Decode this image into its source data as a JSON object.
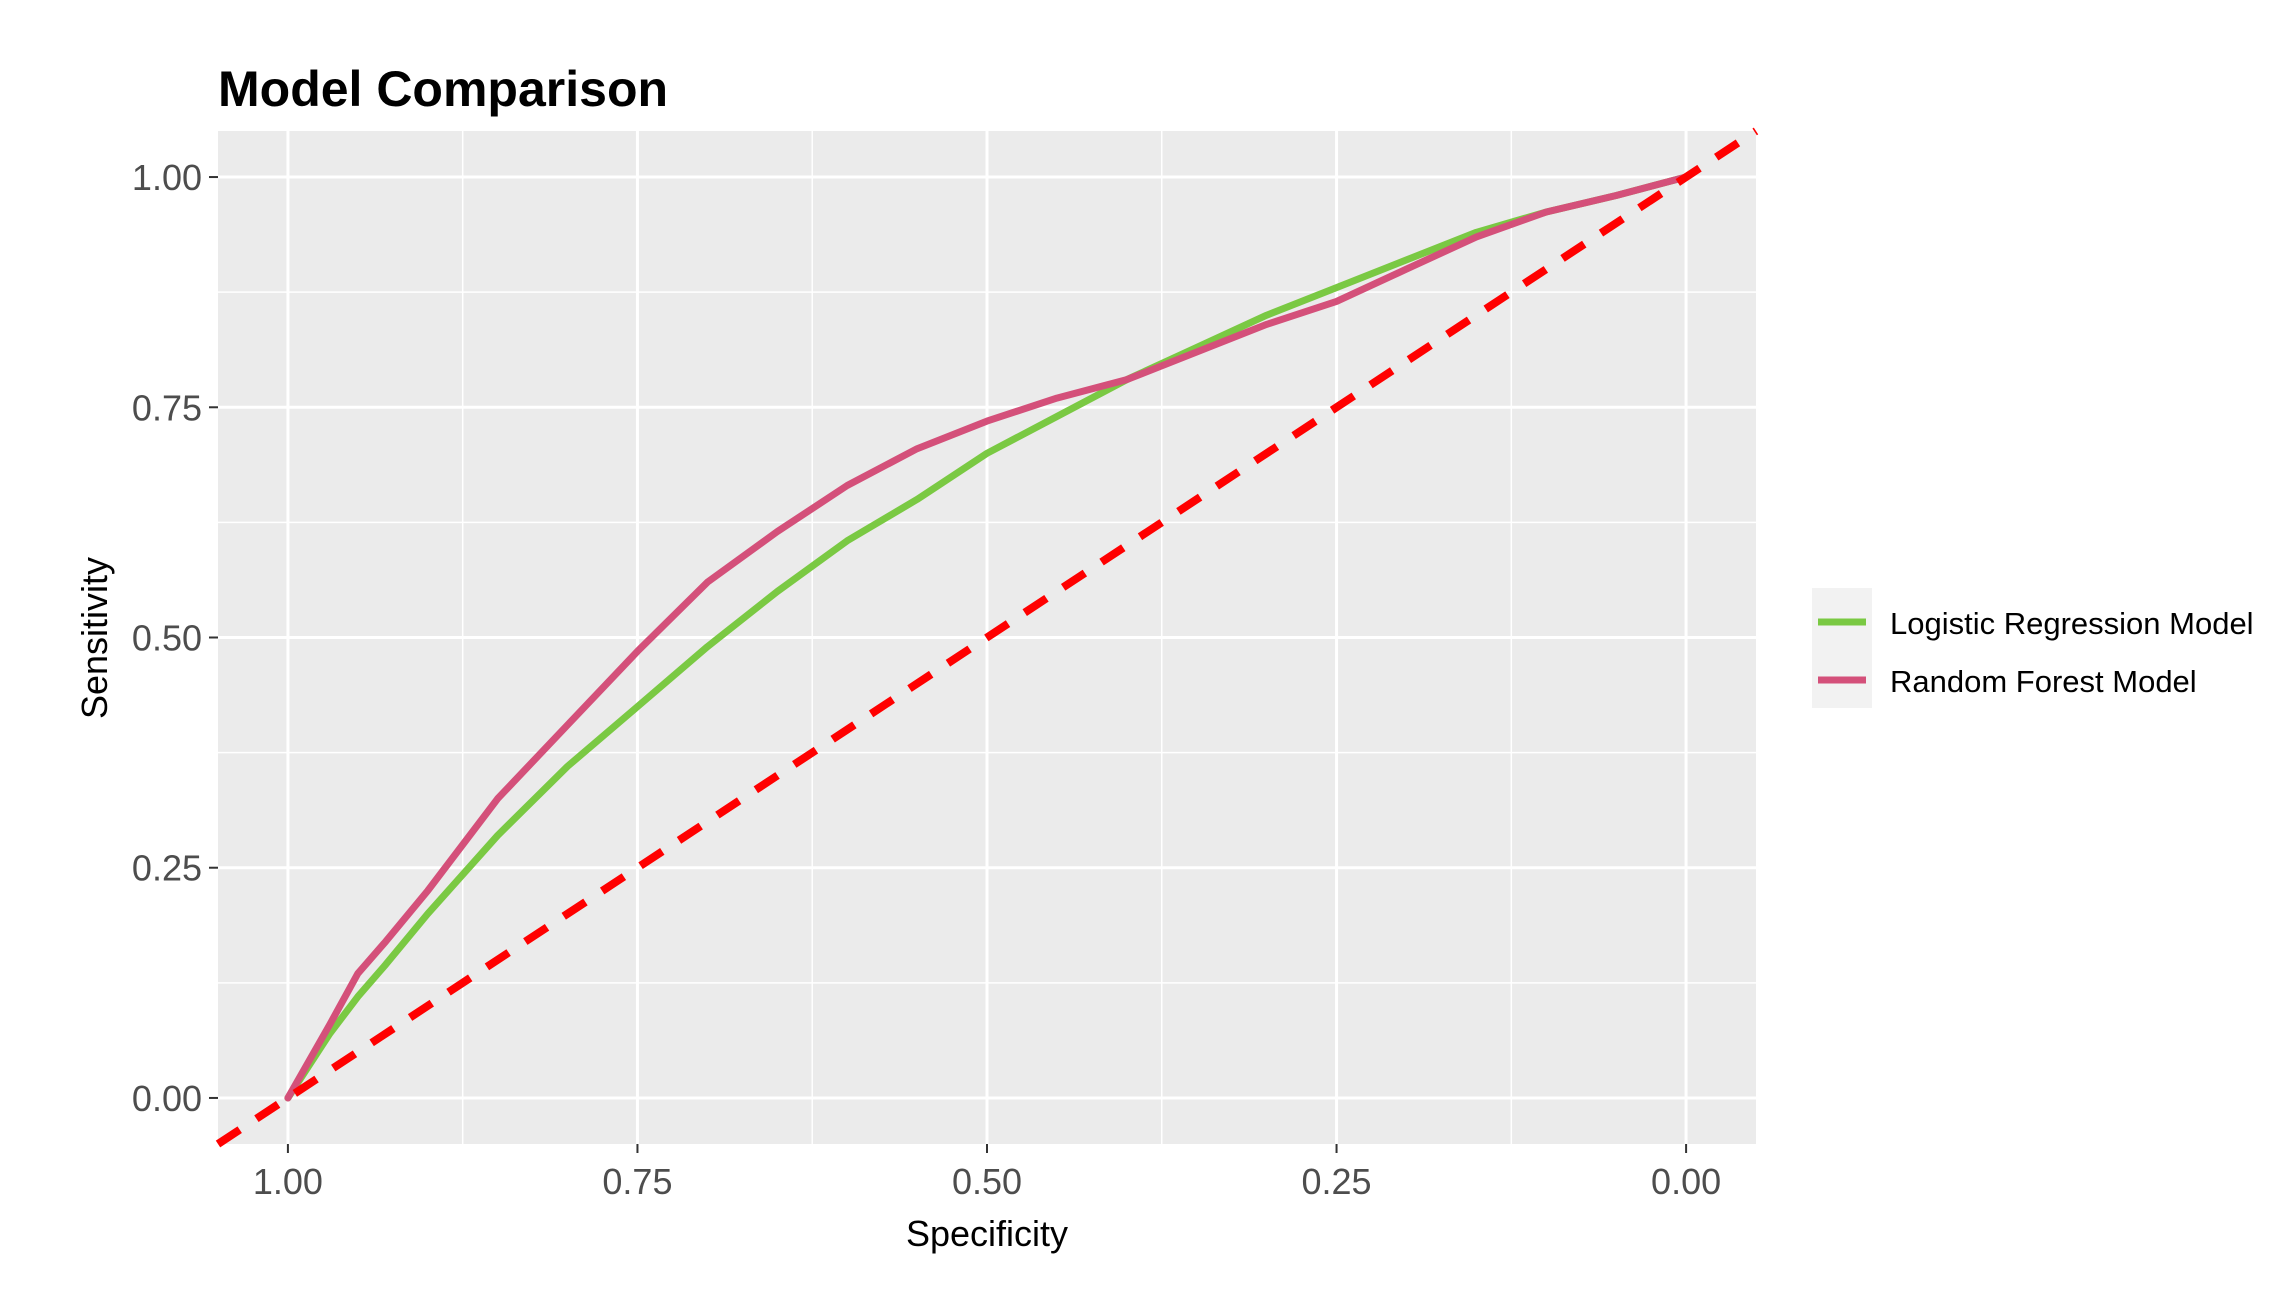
{
  "chart_data": {
    "type": "line",
    "title": "Model Comparison",
    "xlabel": "Specificity",
    "ylabel": "Sensitivity",
    "x_reversed": true,
    "xlim": [
      1.05,
      -0.05
    ],
    "ylim": [
      -0.05,
      1.05
    ],
    "x_ticks": [
      {
        "value": 1.0,
        "label": "1.00"
      },
      {
        "value": 0.75,
        "label": "0.75"
      },
      {
        "value": 0.5,
        "label": "0.50"
      },
      {
        "value": 0.25,
        "label": "0.25"
      },
      {
        "value": 0.0,
        "label": "0.00"
      }
    ],
    "y_ticks": [
      {
        "value": 0.0,
        "label": "0.00"
      },
      {
        "value": 0.25,
        "label": "0.25"
      },
      {
        "value": 0.5,
        "label": "0.50"
      },
      {
        "value": 0.75,
        "label": "0.75"
      },
      {
        "value": 1.0,
        "label": "1.00"
      }
    ],
    "grid": true,
    "legend_position": "right",
    "series": [
      {
        "name": "Logistic Regression Model",
        "color": "#7ac943",
        "points": [
          [
            1.0,
            0.0
          ],
          [
            0.97,
            0.07
          ],
          [
            0.95,
            0.11
          ],
          [
            0.93,
            0.145
          ],
          [
            0.9,
            0.2
          ],
          [
            0.85,
            0.285
          ],
          [
            0.8,
            0.36
          ],
          [
            0.75,
            0.425
          ],
          [
            0.7,
            0.49
          ],
          [
            0.65,
            0.55
          ],
          [
            0.6,
            0.605
          ],
          [
            0.55,
            0.65
          ],
          [
            0.5,
            0.7
          ],
          [
            0.45,
            0.74
          ],
          [
            0.4,
            0.78
          ],
          [
            0.35,
            0.815
          ],
          [
            0.3,
            0.85
          ],
          [
            0.25,
            0.88
          ],
          [
            0.2,
            0.91
          ],
          [
            0.15,
            0.94
          ],
          [
            0.1,
            0.962
          ],
          [
            0.05,
            0.98
          ],
          [
            0.0,
            1.0
          ]
        ]
      },
      {
        "name": "Random Forest Model",
        "color": "#d4507a",
        "points": [
          [
            1.0,
            0.0
          ],
          [
            0.97,
            0.08
          ],
          [
            0.95,
            0.135
          ],
          [
            0.93,
            0.17
          ],
          [
            0.9,
            0.225
          ],
          [
            0.85,
            0.325
          ],
          [
            0.8,
            0.405
          ],
          [
            0.75,
            0.485
          ],
          [
            0.7,
            0.56
          ],
          [
            0.65,
            0.615
          ],
          [
            0.6,
            0.665
          ],
          [
            0.55,
            0.705
          ],
          [
            0.5,
            0.735
          ],
          [
            0.45,
            0.76
          ],
          [
            0.4,
            0.78
          ],
          [
            0.35,
            0.81
          ],
          [
            0.3,
            0.84
          ],
          [
            0.25,
            0.865
          ],
          [
            0.2,
            0.9
          ],
          [
            0.15,
            0.935
          ],
          [
            0.1,
            0.962
          ],
          [
            0.05,
            0.98
          ],
          [
            0.0,
            1.0
          ]
        ]
      }
    ],
    "reference_line": {
      "color": "#ff0000",
      "dashed": true,
      "points": [
        [
          1.05,
          -0.05
        ],
        [
          -0.05,
          1.05
        ]
      ]
    }
  }
}
